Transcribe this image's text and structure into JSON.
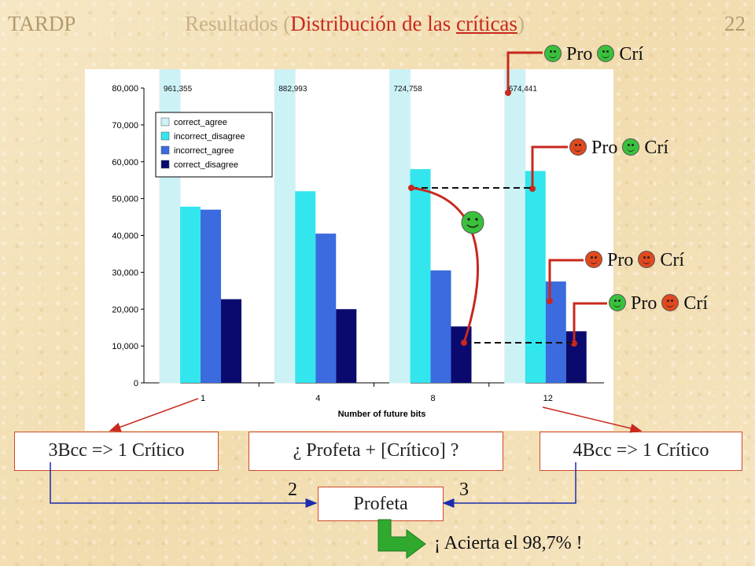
{
  "header": {
    "left": "TARDP",
    "center_prefix": "Resultados (",
    "center_red_a": "Distribución de las ",
    "center_red_b": "críticas",
    "center_suffix": ")",
    "page_number": "22"
  },
  "chart_data": {
    "type": "bar",
    "xlabel": "Number of future bits",
    "ylabel": "",
    "ylim": [
      0,
      80000
    ],
    "yticks": [
      "0",
      "10,000",
      "20,000",
      "30,000",
      "40,000",
      "50,000",
      "60,000",
      "70,000",
      "80,000"
    ],
    "categories": [
      "1",
      "4",
      "8",
      "12"
    ],
    "series": [
      {
        "name": "correct_agree",
        "values": [
          961355,
          882993,
          724758,
          674441
        ],
        "color": "#ccf2f6"
      },
      {
        "name": "incorrect_disagree",
        "values": [
          47800,
          52000,
          58000,
          57500
        ],
        "color": "#33e6ee"
      },
      {
        "name": "incorrect_agree",
        "values": [
          47000,
          40500,
          30500,
          27500
        ],
        "color": "#3b6bde"
      },
      {
        "name": "correct_disagree",
        "values": [
          22700,
          20000,
          15300,
          14000
        ],
        "color": "#0a0a6e"
      }
    ],
    "data_labels": [
      "961,355",
      "882,993",
      "724,758",
      "674,441"
    ],
    "legend": "top-left",
    "grid": false
  },
  "annotations": {
    "pro": "Pro",
    "cri": "Crí",
    "face_rows": [
      {
        "pro_face": "green",
        "cri_face": "green"
      },
      {
        "pro_face": "red",
        "cri_face": "green"
      },
      {
        "pro_face": "red",
        "cri_face": "red"
      },
      {
        "pro_face": "green",
        "cri_face": "red"
      }
    ]
  },
  "boxes": {
    "left": "3Bcc => 1 Crítico",
    "center": "¿ Profeta + [Crítico] ?",
    "right": "4Bcc => 1 Crítico",
    "profeta": "Profeta"
  },
  "numbers": {
    "two": "2",
    "three": "3"
  },
  "result": "¡ Acierta el 98,7% !",
  "colors": {
    "accent_red": "#c8281e",
    "arrow_blue": "#1a2cae",
    "arrow_green": "#2faa2f"
  }
}
